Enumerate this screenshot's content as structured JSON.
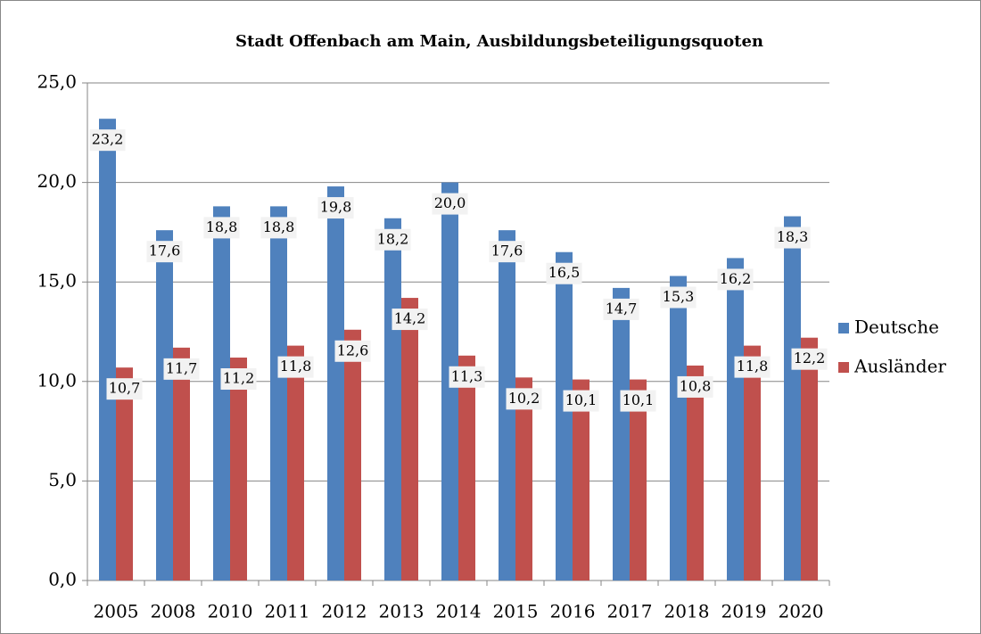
{
  "chart_data": {
    "type": "bar",
    "title": "Stadt Offenbach am Main, Ausbildungsbeteiligungsquoten",
    "categories": [
      "2005",
      "2008",
      "2010",
      "2011",
      "2012",
      "2013",
      "2014",
      "2015",
      "2016",
      "2017",
      "2018",
      "2019",
      "2020"
    ],
    "series": [
      {
        "name": "Deutsche",
        "color": "#4f81bd",
        "values": [
          23.2,
          17.6,
          18.8,
          18.8,
          19.8,
          18.2,
          20.0,
          17.6,
          16.5,
          14.7,
          15.3,
          16.2,
          18.3
        ],
        "value_labels": [
          "23,2",
          "17,6",
          "18,8",
          "18,8",
          "19,8",
          "18,2",
          "20,0",
          "17,6",
          "16,5",
          "14,7",
          "15,3",
          "16,2",
          "18,3"
        ]
      },
      {
        "name": "Ausländer",
        "color": "#c0504d",
        "values": [
          10.7,
          11.7,
          11.2,
          11.8,
          12.6,
          14.2,
          11.3,
          10.2,
          10.1,
          10.1,
          10.8,
          11.8,
          12.2
        ],
        "value_labels": [
          "10,7",
          "11,7",
          "11,2",
          "11,8",
          "12,6",
          "14,2",
          "11,3",
          "10,2",
          "10,1",
          "10,1",
          "10,8",
          "11,8",
          "12,2"
        ]
      }
    ],
    "ylim": [
      0,
      25
    ],
    "yticks": [
      {
        "value": 0,
        "label": "0,0"
      },
      {
        "value": 5,
        "label": "5,0"
      },
      {
        "value": 10,
        "label": "10,0"
      },
      {
        "value": 15,
        "label": "15,0"
      },
      {
        "value": 20,
        "label": "20,0"
      },
      {
        "value": 25,
        "label": "25,0"
      }
    ],
    "grid": true,
    "legend": "right"
  }
}
